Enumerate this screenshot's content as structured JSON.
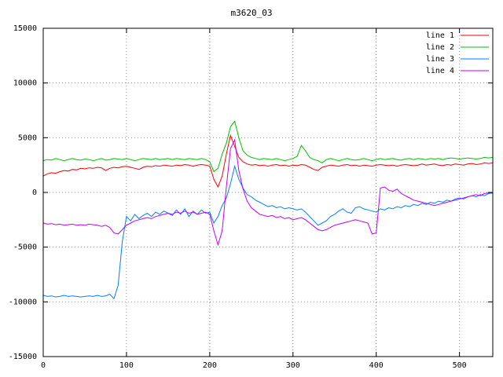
{
  "chart_data": {
    "type": "line",
    "title": "m3620_03",
    "xlabel": "",
    "ylabel": "",
    "xlim": [
      0,
      540
    ],
    "ylim": [
      -15000,
      15000
    ],
    "x_ticks": [
      0,
      100,
      200,
      300,
      400,
      500
    ],
    "y_ticks": [
      -15000,
      -10000,
      -5000,
      0,
      5000,
      10000,
      15000
    ],
    "grid": true,
    "legend_position": "top-right-inside",
    "border_color": "#000000",
    "grid_color": "#909090",
    "x": [
      0,
      5,
      10,
      15,
      20,
      25,
      30,
      35,
      40,
      45,
      50,
      55,
      60,
      65,
      70,
      75,
      80,
      85,
      90,
      95,
      100,
      105,
      110,
      115,
      120,
      125,
      130,
      135,
      140,
      145,
      150,
      155,
      160,
      165,
      170,
      175,
      180,
      185,
      190,
      195,
      200,
      205,
      210,
      215,
      220,
      225,
      230,
      235,
      240,
      245,
      250,
      255,
      260,
      265,
      270,
      275,
      280,
      285,
      290,
      295,
      300,
      305,
      310,
      315,
      320,
      325,
      330,
      335,
      340,
      345,
      350,
      355,
      360,
      365,
      370,
      375,
      380,
      385,
      390,
      395,
      400,
      405,
      410,
      415,
      420,
      425,
      430,
      435,
      440,
      445,
      450,
      455,
      460,
      465,
      470,
      475,
      480,
      485,
      490,
      495,
      500,
      505,
      510,
      515,
      520,
      525,
      530,
      535,
      540
    ],
    "series": [
      {
        "name": "line 1",
        "color": "#ff0000",
        "values": [
          1500,
          1700,
          1800,
          1750,
          1900,
          2000,
          1950,
          2100,
          2050,
          2200,
          2150,
          2250,
          2200,
          2300,
          2250,
          2000,
          2200,
          2300,
          2250,
          2350,
          2400,
          2300,
          2200,
          2100,
          2300,
          2400,
          2350,
          2450,
          2400,
          2500,
          2450,
          2400,
          2500,
          2450,
          2550,
          2500,
          2400,
          2500,
          2550,
          2500,
          2400,
          1200,
          500,
          1500,
          3500,
          5200,
          4200,
          3200,
          2800,
          2600,
          2500,
          2550,
          2450,
          2500,
          2400,
          2500,
          2550,
          2450,
          2500,
          2400,
          2500,
          2450,
          2550,
          2500,
          2300,
          2100,
          2000,
          2300,
          2400,
          2500,
          2450,
          2400,
          2500,
          2550,
          2450,
          2500,
          2400,
          2500,
          2450,
          2400,
          2500,
          2550,
          2500,
          2450,
          2500,
          2400,
          2500,
          2550,
          2500,
          2450,
          2500,
          2600,
          2500,
          2550,
          2600,
          2500,
          2450,
          2550,
          2500,
          2600,
          2550,
          2500,
          2600,
          2650,
          2550,
          2600,
          2700,
          2650,
          2700
        ]
      },
      {
        "name": "line 2",
        "color": "#00c000",
        "values": [
          2900,
          3000,
          2950,
          3100,
          3000,
          2900,
          3000,
          3100,
          3000,
          2950,
          3050,
          3000,
          2900,
          3000,
          3100,
          2950,
          3000,
          3100,
          3050,
          3000,
          3100,
          3000,
          2900,
          3000,
          3100,
          3050,
          3000,
          3100,
          3000,
          3050,
          3100,
          3000,
          3100,
          3050,
          3000,
          3100,
          3050,
          3000,
          3100,
          3000,
          2800,
          1900,
          2200,
          3500,
          4500,
          6000,
          6500,
          5000,
          3800,
          3400,
          3200,
          3100,
          3000,
          3100,
          3050,
          3000,
          3100,
          3000,
          2900,
          3000,
          3100,
          3300,
          4300,
          3800,
          3200,
          3000,
          2900,
          2700,
          3000,
          3100,
          3000,
          2900,
          3000,
          3100,
          3000,
          2950,
          3000,
          3100,
          3000,
          2900,
          3000,
          3100,
          3000,
          3050,
          3100,
          3000,
          2950,
          3050,
          3100,
          3000,
          3100,
          3050,
          3000,
          3100,
          3050,
          3100,
          3000,
          3100,
          3150,
          3100,
          3050,
          3100,
          3150,
          3100,
          3050,
          3100,
          3200,
          3150,
          3200
        ]
      },
      {
        "name": "line 3",
        "color": "#0080ff",
        "values": [
          -9400,
          -9500,
          -9450,
          -9550,
          -9500,
          -9400,
          -9500,
          -9450,
          -9500,
          -9550,
          -9500,
          -9450,
          -9500,
          -9400,
          -9500,
          -9450,
          -9300,
          -9700,
          -8500,
          -4500,
          -2200,
          -2600,
          -2000,
          -2400,
          -2100,
          -1900,
          -2200,
          -1800,
          -2000,
          -1700,
          -1900,
          -2100,
          -1600,
          -2000,
          -1500,
          -2200,
          -1700,
          -2000,
          -1600,
          -1900,
          -1800,
          -2800,
          -2200,
          -1200,
          -500,
          800,
          2400,
          1200,
          400,
          -200,
          -400,
          -700,
          -900,
          -1100,
          -1300,
          -1200,
          -1400,
          -1300,
          -1500,
          -1400,
          -1500,
          -1600,
          -1500,
          -1800,
          -2200,
          -2600,
          -3000,
          -2800,
          -2600,
          -2200,
          -2000,
          -1700,
          -1500,
          -1800,
          -1900,
          -1400,
          -1300,
          -1500,
          -1600,
          -1700,
          -1800,
          -1500,
          -1600,
          -1400,
          -1500,
          -1300,
          -1400,
          -1200,
          -1300,
          -1100,
          -1200,
          -1000,
          -1100,
          -900,
          -1000,
          -800,
          -900,
          -700,
          -800,
          -600,
          -500,
          -600,
          -400,
          -300,
          -400,
          -200,
          -300,
          -100,
          -50
        ]
      },
      {
        "name": "line 4",
        "color": "#c000ff",
        "values": [
          -2800,
          -2900,
          -2850,
          -2950,
          -2900,
          -3000,
          -2950,
          -2900,
          -3000,
          -2950,
          -3000,
          -2900,
          -2950,
          -3000,
          -3100,
          -3000,
          -3200,
          -3700,
          -3800,
          -3400,
          -3000,
          -2800,
          -2600,
          -2500,
          -2400,
          -2300,
          -2400,
          -2200,
          -2100,
          -2000,
          -1900,
          -2000,
          -1800,
          -1900,
          -1700,
          -1900,
          -1800,
          -2000,
          -1900,
          -1800,
          -2000,
          -3500,
          -4800,
          -3500,
          500,
          4000,
          4800,
          2000,
          300,
          -800,
          -1400,
          -1700,
          -2000,
          -2100,
          -2200,
          -2100,
          -2300,
          -2200,
          -2400,
          -2300,
          -2500,
          -2400,
          -2300,
          -2500,
          -2800,
          -3100,
          -3400,
          -3500,
          -3400,
          -3200,
          -3000,
          -2900,
          -2800,
          -2700,
          -2600,
          -2500,
          -2600,
          -2700,
          -2800,
          -3800,
          -3700,
          400,
          500,
          200,
          100,
          300,
          -100,
          -300,
          -500,
          -700,
          -800,
          -900,
          -1000,
          -1100,
          -1200,
          -1100,
          -1000,
          -900,
          -800,
          -700,
          -600,
          -500,
          -400,
          -300,
          -200,
          -300,
          -100,
          -50,
          0
        ]
      }
    ]
  }
}
